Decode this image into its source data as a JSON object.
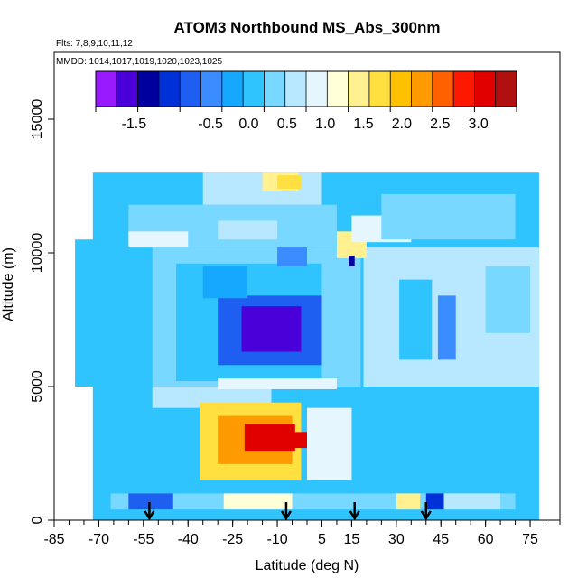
{
  "chart_data": {
    "type": "heatmap",
    "title": "ATOM3 Northbound MS_Abs_300nm",
    "subtitle_lines": [
      "Flts: 7,8,9,10,11,12",
      "MMDD: 1014,1017,1019,1020,1023,1025"
    ],
    "xlabel": "Latitude (deg N)",
    "ylabel": "Altitude (m)",
    "xlim": [
      -85,
      85
    ],
    "ylim": [
      0,
      17500
    ],
    "x_ticks": [
      -85,
      -70,
      -55,
      -40,
      -25,
      -10,
      5,
      15,
      30,
      45,
      60,
      75
    ],
    "x_tick_labels": [
      "-85",
      "-70",
      "-55",
      "-40",
      "-25",
      "-10",
      "5",
      "15",
      "30",
      "45",
      "60",
      "75"
    ],
    "y_ticks": [
      0,
      5000,
      10000,
      15000
    ],
    "y_tick_labels": [
      "0",
      "5000",
      "10000",
      "15000"
    ],
    "colorbar": {
      "range": [
        -2.0,
        3.5
      ],
      "tick_values": [
        -1.5,
        -0.5,
        0.0,
        0.5,
        1.0,
        1.5,
        2.0,
        2.5,
        3.0
      ],
      "tick_labels": [
        "-1.5",
        "-0.5",
        "0.0",
        "0.5",
        "1.0",
        "1.5",
        "2.0",
        "2.5",
        "3.0"
      ],
      "colors": [
        "#9a1aff",
        "#4a00d8",
        "#00009e",
        "#0030d8",
        "#1e5ef0",
        "#3a8cff",
        "#16a8ff",
        "#30c4ff",
        "#78d8ff",
        "#b8e8ff",
        "#e6f6ff",
        "#ffffd8",
        "#fff090",
        "#ffe040",
        "#ffc000",
        "#ff9a00",
        "#ff6000",
        "#ff1800",
        "#e00000",
        "#b01010"
      ]
    },
    "arrows_latitude": [
      -53,
      -7,
      16,
      40
    ],
    "regions": [
      {
        "lat": [
          -72,
          78
        ],
        "alt": [
          0,
          13000
        ],
        "value": 0.1
      },
      {
        "lat": [
          -78,
          -70
        ],
        "alt": [
          5000,
          10500
        ],
        "value": 0.05
      },
      {
        "lat": [
          -66,
          70
        ],
        "alt": [
          400,
          1000
        ],
        "value": 0.3
      },
      {
        "lat": [
          -60,
          -45
        ],
        "alt": [
          400,
          1000
        ],
        "value": -0.8
      },
      {
        "lat": [
          -28,
          -5
        ],
        "alt": [
          400,
          1000
        ],
        "value": 1.1
      },
      {
        "lat": [
          30,
          38
        ],
        "alt": [
          400,
          1000
        ],
        "value": 1.4
      },
      {
        "lat": [
          40,
          46
        ],
        "alt": [
          400,
          1000
        ],
        "value": -1.1
      },
      {
        "lat": [
          46,
          65
        ],
        "alt": [
          400,
          1000
        ],
        "value": 0.5
      },
      {
        "lat": [
          -52,
          18
        ],
        "alt": [
          5000,
          10200
        ],
        "value": 0.3
      },
      {
        "lat": [
          -44,
          5
        ],
        "alt": [
          5200,
          9600
        ],
        "value": 0.0
      },
      {
        "lat": [
          -30,
          5
        ],
        "alt": [
          5800,
          8400
        ],
        "value": -0.8
      },
      {
        "lat": [
          -22,
          -2
        ],
        "alt": [
          6300,
          8000
        ],
        "value": -1.5
      },
      {
        "lat": [
          -35,
          -20
        ],
        "alt": [
          8300,
          9500
        ],
        "value": -0.3
      },
      {
        "lat": [
          -10,
          0
        ],
        "alt": [
          9500,
          10500
        ],
        "value": -0.6
      },
      {
        "lat": [
          19,
          78
        ],
        "alt": [
          5000,
          10200
        ],
        "value": 0.7
      },
      {
        "lat": [
          31,
          42
        ],
        "alt": [
          6000,
          9000
        ],
        "value": 0.1
      },
      {
        "lat": [
          44,
          50
        ],
        "alt": [
          6000,
          8400
        ],
        "value": -0.5
      },
      {
        "lat": [
          -52,
          -12
        ],
        "alt": [
          4200,
          5000
        ],
        "value": 0.6
      },
      {
        "lat": [
          -36,
          -2
        ],
        "alt": [
          1500,
          4400
        ],
        "value": 1.8
      },
      {
        "lat": [
          -30,
          -5
        ],
        "alt": [
          2100,
          3900
        ],
        "value": 2.3
      },
      {
        "lat": [
          -21,
          -4
        ],
        "alt": [
          2600,
          3600
        ],
        "value": 3.0
      },
      {
        "lat": [
          -16,
          0
        ],
        "alt": [
          2700,
          3300
        ],
        "value": 3.2
      },
      {
        "lat": [
          0,
          15
        ],
        "alt": [
          1500,
          4200
        ],
        "value": 0.9
      },
      {
        "lat": [
          -30,
          10
        ],
        "alt": [
          4900,
          5300
        ],
        "value": 1.0
      },
      {
        "lat": [
          -60,
          10
        ],
        "alt": [
          10200,
          11800
        ],
        "value": 0.3
      },
      {
        "lat": [
          -60,
          -40
        ],
        "alt": [
          10200,
          10800
        ],
        "value": 1.0
      },
      {
        "lat": [
          -30,
          -10
        ],
        "alt": [
          10500,
          11200
        ],
        "value": 0.7
      },
      {
        "lat": [
          10,
          20
        ],
        "alt": [
          9800,
          10800
        ],
        "value": 1.3
      },
      {
        "lat": [
          15,
          35
        ],
        "alt": [
          10400,
          11400
        ],
        "value": 0.8
      },
      {
        "lat": [
          -35,
          5
        ],
        "alt": [
          11800,
          13000
        ],
        "value": 0.6
      },
      {
        "lat": [
          -15,
          -3
        ],
        "alt": [
          12300,
          13000
        ],
        "value": 1.5
      },
      {
        "lat": [
          -10,
          -2
        ],
        "alt": [
          12400,
          12900
        ],
        "value": 1.8
      },
      {
        "lat": [
          25,
          70
        ],
        "alt": [
          10500,
          12200
        ],
        "value": 0.2
      },
      {
        "lat": [
          14,
          16
        ],
        "alt": [
          9500,
          9900
        ],
        "value": -1.3
      },
      {
        "lat": [
          60,
          75
        ],
        "alt": [
          7000,
          9500
        ],
        "value": 0.4
      }
    ]
  }
}
